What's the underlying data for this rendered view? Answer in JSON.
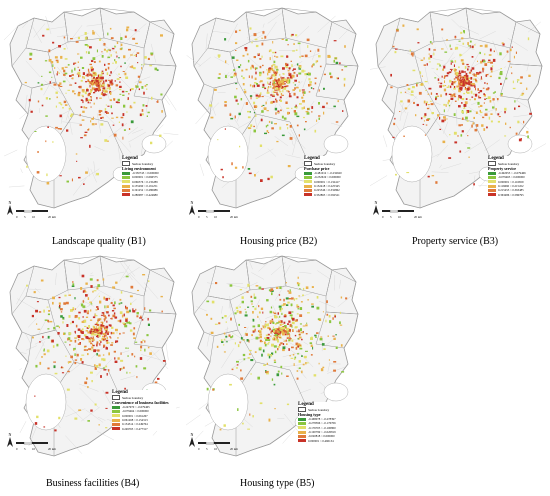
{
  "legend_title": "Legend",
  "boundary_label": "Suzhou boundary",
  "north_label": "N",
  "scale_labels": [
    "0",
    "5",
    "10",
    "20"
  ],
  "scale_unit": "km",
  "colors": {
    "map_bg": "#f3f3f3",
    "road": "#d4d4d4",
    "boundary": "#9a9a9a",
    "water": "#ffffff",
    "ramp": [
      "#3a9a3a",
      "#8cc63f",
      "#e2e06a",
      "#e9b24b",
      "#e07a3a",
      "#c83228"
    ]
  },
  "panels": [
    {
      "caption": "Landscape quality (B1)",
      "field": "Living environment",
      "classes": [
        "-0.350745 ~ 0.000000",
        "0.000001 ~ 0.066575",
        "0.066576 ~ 0.135289",
        "0.135290 ~ 0.191251",
        "0.191252 ~ 0.280086",
        "0.280087 ~ 0.424680"
      ]
    },
    {
      "caption": "Housing price (B2)",
      "field": "Purchase price",
      "classes": [
        "-0.481012 ~ -0.232620",
        "-0.232619 ~ 0.000000",
        "0.000001 ~ 0.132417",
        "0.132418 ~ 0.225345",
        "0.225346 ~ 0.332862",
        "0.332863 ~ 0.592521"
      ]
    },
    {
      "caption": "Property service (B3)",
      "field": "Property service",
      "classes": [
        "-0.492053 ~ -0.079466",
        "-0.079465 ~ 0.000000",
        "0.000001 ~ 0.116659",
        "0.116660 ~ 0.215452",
        "0.215453 ~ 0.363485",
        "0.363486 ~ 0.586795"
      ]
    },
    {
      "caption": "Business facilities (B4)",
      "field": "Convenience of business facilities",
      "classes": [
        "-0.247970 ~ -0.079465",
        "-0.079464 ~ 0.000000",
        "0.000001 ~ 0.061267",
        "0.061268 ~ 0.154313",
        "0.154314 ~ 0.249764",
        "0.249765 ~ 0.477317"
      ]
    },
    {
      "caption": "Housing type (B5)",
      "field": "Housing type",
      "classes": [
        "-0.468078 ~ -0.278397",
        "-0.278396 ~ -0.176706",
        "-0.176705 ~ -0.100800",
        "-0.100799 ~ -0.020819",
        "-0.020818 ~ 0.000000",
        "0.000001 ~ 0.460134"
      ]
    }
  ]
}
